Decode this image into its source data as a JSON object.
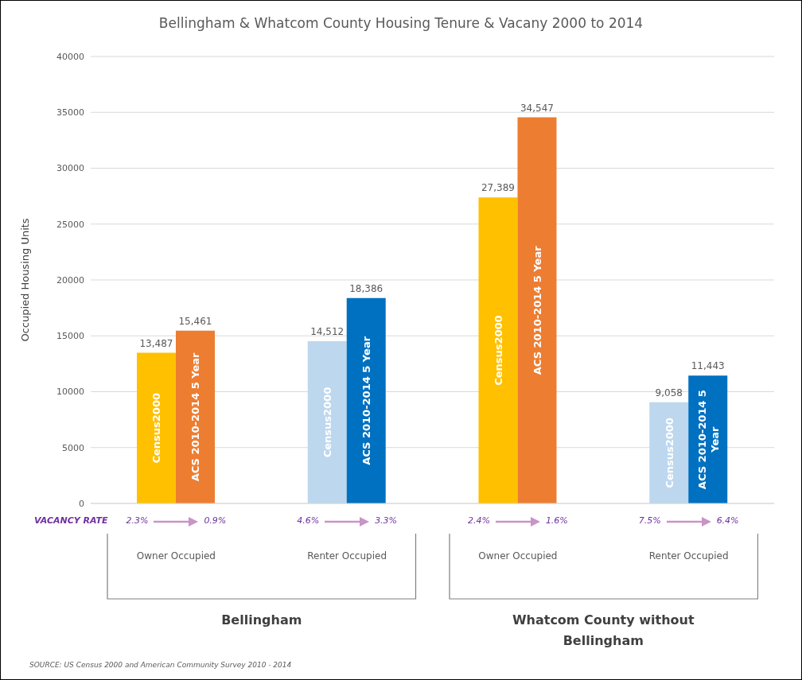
{
  "chart_data": {
    "type": "bar",
    "title": "Bellingham & Whatcom County Housing Tenure & Vacany 2000 to 2014",
    "ylabel": "Occupied Housing Units",
    "categories": [
      "Owner Occupied",
      "Renter Occupied",
      "Owner Occupied",
      "Renter Occupied"
    ],
    "series": [
      {
        "name": "Census2000",
        "colors": [
          "#ffc000",
          "#bdd7ee",
          "#ffc000",
          "#bdd7ee"
        ],
        "values": [
          13487,
          14512,
          27389,
          9058
        ],
        "value_labels": [
          "13,487",
          "14,512",
          "27,389",
          "9,058"
        ]
      },
      {
        "name": "ACS 2010-2014 5 Year",
        "colors": [
          "#ed7d31",
          "#0070c0",
          "#ed7d31",
          "#0070c0"
        ],
        "values": [
          15461,
          18386,
          34547,
          11443
        ],
        "value_labels": [
          "15,461",
          "18,386",
          "34,547",
          "11,443"
        ]
      }
    ],
    "ylim": [
      0,
      40000
    ],
    "yticks": [
      0,
      5000,
      10000,
      15000,
      20000,
      25000,
      30000,
      35000,
      40000
    ],
    "grid": "y",
    "legend": false,
    "annotations": [
      "VACANCY RATE",
      "2.3%",
      "0.9%",
      "4.6%",
      "3.3%",
      "2.4%",
      "1.6%",
      "7.5%",
      "6.4%",
      "Bellingham",
      "Whatcom County without Bellingham",
      "SOURCE: US Census 2000 and American Community Survey 2010 - 2014"
    ]
  }
}
